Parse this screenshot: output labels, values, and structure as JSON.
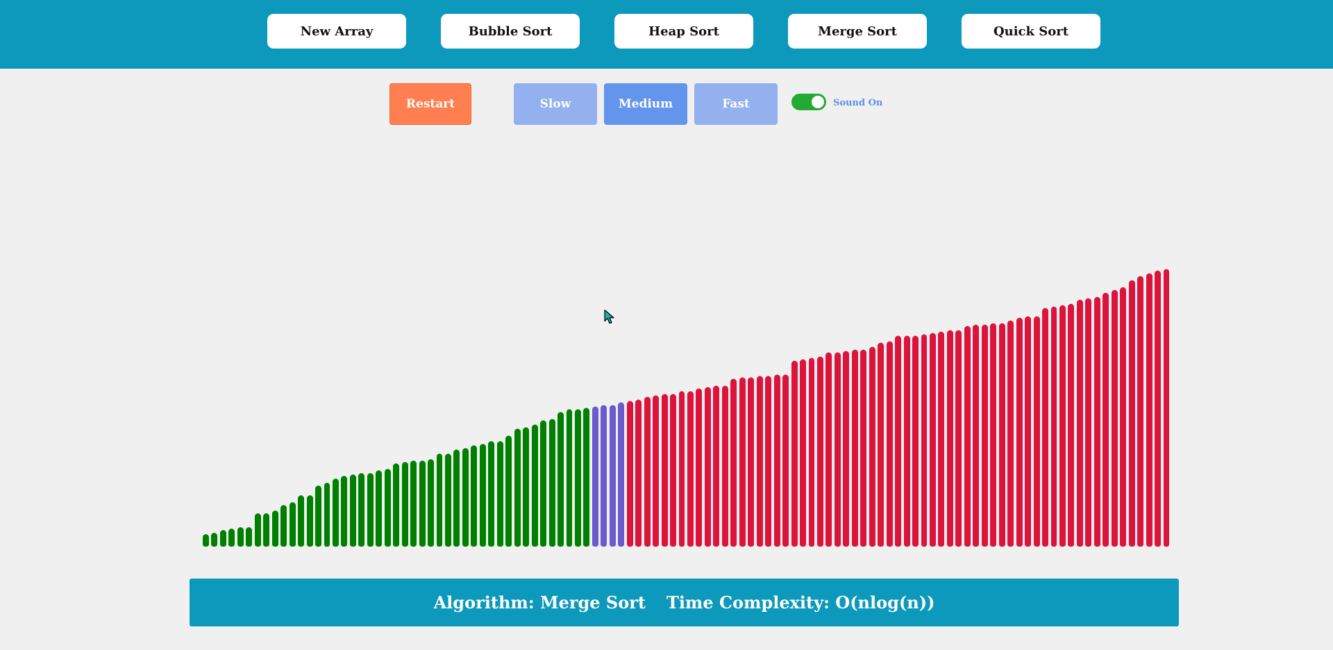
{
  "toolbar": {
    "buttons": [
      {
        "label": "New Array"
      },
      {
        "label": "Bubble Sort"
      },
      {
        "label": "Heap Sort"
      },
      {
        "label": "Merge Sort"
      },
      {
        "label": "Quick Sort"
      }
    ]
  },
  "controls": {
    "restart_label": "Restart",
    "speeds": [
      {
        "label": "Slow",
        "active": false
      },
      {
        "label": "Medium",
        "active": true
      },
      {
        "label": "Fast",
        "active": false
      }
    ],
    "sound_label": "Sound On",
    "sound_on": true
  },
  "colors": {
    "header": "#0c99bc",
    "sorted": "#008000",
    "active": "#6a5acd",
    "unsorted": "#dc143c",
    "restart": "#ff7f50",
    "speed": "#93b1ef",
    "speed_active": "#6495ed",
    "toggle": "#22aa33"
  },
  "footer": {
    "algorithm_text": "Algorithm: Merge Sort",
    "complexity_text": "Time Complexity: O(nlog(n))"
  },
  "chart_data": {
    "type": "bar",
    "values": [
      4.5,
      5,
      6,
      6.5,
      7,
      7,
      12,
      12,
      13,
      15,
      16,
      18.5,
      18.5,
      22,
      23,
      24.5,
      25.5,
      26,
      26.5,
      26.5,
      27.5,
      28,
      30,
      30.5,
      31,
      31,
      31.5,
      33.5,
      33.5,
      35,
      35.5,
      36.5,
      37,
      38,
      38,
      40,
      42.5,
      43,
      44,
      45.5,
      46,
      48.5,
      49.5,
      49.5,
      50,
      50.5,
      51,
      51,
      52,
      52.5,
      53,
      54,
      54.5,
      55,
      55,
      56,
      56,
      57,
      57.5,
      58,
      58,
      60.5,
      61,
      61,
      61.5,
      61.5,
      62,
      62,
      67,
      67.5,
      68,
      68.5,
      70,
      70,
      70.5,
      71,
      71,
      72,
      73.5,
      74,
      76,
      76,
      76,
      76.5,
      77,
      77.5,
      78,
      78,
      79.5,
      80,
      80,
      80.5,
      80.5,
      81.5,
      82.5,
      83,
      83,
      86,
      86.5,
      87,
      87.5,
      89,
      89.5,
      90,
      91.5,
      92.5,
      93.5,
      96,
      97.5,
      98.5,
      99.5,
      100
    ],
    "series_state": {
      "sorted_count": 45,
      "active_count": 4
    },
    "ylim": [
      0,
      100
    ]
  }
}
